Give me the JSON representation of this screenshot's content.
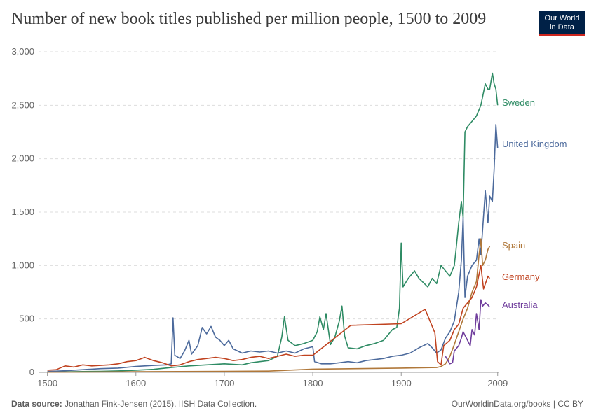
{
  "header": {
    "title": "Number of new book titles published per million people, 1500 to 2009",
    "logo_line1": "Our World",
    "logo_line2": "in Data"
  },
  "footer": {
    "source_label": "Data source:",
    "source_text": "Jonathan Fink-Jensen (2015). IISH Data Collection.",
    "credit": "OurWorldinData.org/books | CC BY"
  },
  "chart_data": {
    "type": "line",
    "title": "Number of new book titles published per million people, 1500 to 2009",
    "xlabel": "",
    "ylabel": "",
    "xlim": [
      1490,
      2010
    ],
    "ylim": [
      0,
      3000
    ],
    "x_ticks": [
      1500,
      1600,
      1700,
      1800,
      1900,
      2009
    ],
    "x_tick_labels": [
      "1500",
      "1600",
      "1700",
      "1800",
      "1900",
      "2009"
    ],
    "y_ticks": [
      0,
      500,
      1000,
      1500,
      2000,
      2500,
      3000
    ],
    "y_tick_labels": [
      "0",
      "500",
      "1,000",
      "1,500",
      "2,000",
      "2,500",
      "3,000"
    ],
    "grid": "horizontal dashed",
    "legend": "inline labels at right end of lines",
    "series": [
      {
        "name": "Sweden",
        "color": "#2e8b64",
        "points": [
          [
            1500,
            3
          ],
          [
            1520,
            5
          ],
          [
            1540,
            8
          ],
          [
            1560,
            10
          ],
          [
            1580,
            14
          ],
          [
            1600,
            20
          ],
          [
            1620,
            28
          ],
          [
            1640,
            45
          ],
          [
            1660,
            60
          ],
          [
            1680,
            70
          ],
          [
            1700,
            80
          ],
          [
            1720,
            70
          ],
          [
            1730,
            90
          ],
          [
            1740,
            100
          ],
          [
            1750,
            110
          ],
          [
            1760,
            150
          ],
          [
            1765,
            330
          ],
          [
            1768,
            520
          ],
          [
            1772,
            300
          ],
          [
            1780,
            250
          ],
          [
            1790,
            270
          ],
          [
            1800,
            300
          ],
          [
            1805,
            380
          ],
          [
            1808,
            520
          ],
          [
            1812,
            400
          ],
          [
            1815,
            550
          ],
          [
            1820,
            260
          ],
          [
            1825,
            330
          ],
          [
            1830,
            480
          ],
          [
            1833,
            620
          ],
          [
            1836,
            340
          ],
          [
            1840,
            230
          ],
          [
            1850,
            220
          ],
          [
            1860,
            250
          ],
          [
            1870,
            270
          ],
          [
            1880,
            300
          ],
          [
            1890,
            400
          ],
          [
            1895,
            420
          ],
          [
            1898,
            600
          ],
          [
            1900,
            1210
          ],
          [
            1902,
            800
          ],
          [
            1908,
            880
          ],
          [
            1915,
            950
          ],
          [
            1920,
            880
          ],
          [
            1925,
            840
          ],
          [
            1930,
            800
          ],
          [
            1935,
            880
          ],
          [
            1940,
            830
          ],
          [
            1945,
            1000
          ],
          [
            1950,
            950
          ],
          [
            1955,
            900
          ],
          [
            1960,
            1000
          ],
          [
            1962,
            1150
          ],
          [
            1965,
            1400
          ],
          [
            1968,
            1600
          ],
          [
            1970,
            1450
          ],
          [
            1972,
            2250
          ],
          [
            1975,
            2300
          ],
          [
            1980,
            2350
          ],
          [
            1985,
            2400
          ],
          [
            1990,
            2500
          ],
          [
            1995,
            2700
          ],
          [
            1998,
            2650
          ],
          [
            2000,
            2650
          ],
          [
            2003,
            2800
          ],
          [
            2005,
            2700
          ],
          [
            2007,
            2650
          ],
          [
            2009,
            2500
          ]
        ]
      },
      {
        "name": "United Kingdom",
        "color": "#4c6a9c",
        "points": [
          [
            1500,
            8
          ],
          [
            1520,
            15
          ],
          [
            1540,
            25
          ],
          [
            1560,
            35
          ],
          [
            1580,
            40
          ],
          [
            1600,
            55
          ],
          [
            1620,
            65
          ],
          [
            1635,
            70
          ],
          [
            1640,
            80
          ],
          [
            1642,
            510
          ],
          [
            1644,
            160
          ],
          [
            1650,
            130
          ],
          [
            1655,
            200
          ],
          [
            1660,
            300
          ],
          [
            1663,
            170
          ],
          [
            1670,
            250
          ],
          [
            1675,
            420
          ],
          [
            1680,
            360
          ],
          [
            1685,
            430
          ],
          [
            1690,
            330
          ],
          [
            1695,
            300
          ],
          [
            1700,
            250
          ],
          [
            1705,
            300
          ],
          [
            1710,
            220
          ],
          [
            1720,
            180
          ],
          [
            1730,
            200
          ],
          [
            1740,
            190
          ],
          [
            1750,
            200
          ],
          [
            1760,
            180
          ],
          [
            1770,
            200
          ],
          [
            1780,
            180
          ],
          [
            1790,
            220
          ],
          [
            1800,
            240
          ],
          [
            1802,
            100
          ],
          [
            1810,
            80
          ],
          [
            1820,
            80
          ],
          [
            1830,
            90
          ],
          [
            1840,
            100
          ],
          [
            1850,
            90
          ],
          [
            1860,
            110
          ],
          [
            1870,
            120
          ],
          [
            1880,
            130
          ],
          [
            1890,
            150
          ],
          [
            1900,
            160
          ],
          [
            1910,
            180
          ],
          [
            1920,
            230
          ],
          [
            1930,
            270
          ],
          [
            1935,
            230
          ],
          [
            1940,
            180
          ],
          [
            1945,
            210
          ],
          [
            1950,
            320
          ],
          [
            1955,
            380
          ],
          [
            1960,
            480
          ],
          [
            1965,
            750
          ],
          [
            1968,
            1050
          ],
          [
            1970,
            1450
          ],
          [
            1972,
            700
          ],
          [
            1975,
            900
          ],
          [
            1980,
            1000
          ],
          [
            1985,
            1050
          ],
          [
            1988,
            1250
          ],
          [
            1990,
            1100
          ],
          [
            1995,
            1700
          ],
          [
            1998,
            1400
          ],
          [
            2000,
            1650
          ],
          [
            2003,
            1600
          ],
          [
            2005,
            1900
          ],
          [
            2007,
            2320
          ],
          [
            2009,
            2100
          ]
        ]
      },
      {
        "name": "Spain",
        "color": "#b0783a",
        "points": [
          [
            1500,
            2
          ],
          [
            1550,
            4
          ],
          [
            1600,
            6
          ],
          [
            1650,
            8
          ],
          [
            1700,
            10
          ],
          [
            1750,
            12
          ],
          [
            1800,
            30
          ],
          [
            1850,
            35
          ],
          [
            1900,
            40
          ],
          [
            1940,
            45
          ],
          [
            1945,
            55
          ],
          [
            1950,
            80
          ],
          [
            1955,
            150
          ],
          [
            1960,
            260
          ],
          [
            1965,
            380
          ],
          [
            1970,
            500
          ],
          [
            1975,
            600
          ],
          [
            1980,
            750
          ],
          [
            1985,
            850
          ],
          [
            1988,
            1100
          ],
          [
            1990,
            1250
          ],
          [
            1992,
            1000
          ],
          [
            1995,
            1050
          ],
          [
            1998,
            1150
          ],
          [
            2000,
            1180
          ]
        ]
      },
      {
        "name": "Germany",
        "color": "#c0421f",
        "points": [
          [
            1500,
            20
          ],
          [
            1510,
            25
          ],
          [
            1520,
            60
          ],
          [
            1530,
            50
          ],
          [
            1540,
            70
          ],
          [
            1550,
            60
          ],
          [
            1560,
            65
          ],
          [
            1570,
            70
          ],
          [
            1580,
            80
          ],
          [
            1590,
            100
          ],
          [
            1600,
            110
          ],
          [
            1610,
            140
          ],
          [
            1620,
            110
          ],
          [
            1630,
            90
          ],
          [
            1640,
            60
          ],
          [
            1650,
            70
          ],
          [
            1660,
            100
          ],
          [
            1670,
            120
          ],
          [
            1680,
            130
          ],
          [
            1690,
            140
          ],
          [
            1700,
            130
          ],
          [
            1710,
            110
          ],
          [
            1720,
            120
          ],
          [
            1730,
            140
          ],
          [
            1740,
            150
          ],
          [
            1750,
            130
          ],
          [
            1760,
            150
          ],
          [
            1770,
            170
          ],
          [
            1780,
            150
          ],
          [
            1790,
            160
          ],
          [
            1800,
            160
          ],
          [
            1843,
            440
          ],
          [
            1900,
            455
          ],
          [
            1927,
            590
          ],
          [
            1938,
            370
          ],
          [
            1941,
            100
          ],
          [
            1945,
            70
          ],
          [
            1948,
            250
          ],
          [
            1955,
            300
          ],
          [
            1960,
            400
          ],
          [
            1965,
            450
          ],
          [
            1970,
            600
          ],
          [
            1975,
            650
          ],
          [
            1980,
            700
          ],
          [
            1985,
            800
          ],
          [
            1990,
            1000
          ],
          [
            1993,
            780
          ],
          [
            1996,
            850
          ],
          [
            1998,
            900
          ],
          [
            2000,
            880
          ]
        ]
      },
      {
        "name": "Australia",
        "color": "#6f3d9c",
        "points": [
          [
            1950,
            150
          ],
          [
            1955,
            80
          ],
          [
            1958,
            90
          ],
          [
            1960,
            200
          ],
          [
            1965,
            250
          ],
          [
            1968,
            320
          ],
          [
            1970,
            380
          ],
          [
            1975,
            300
          ],
          [
            1978,
            250
          ],
          [
            1980,
            400
          ],
          [
            1983,
            350
          ],
          [
            1985,
            550
          ],
          [
            1988,
            400
          ],
          [
            1990,
            680
          ],
          [
            1992,
            620
          ],
          [
            1995,
            650
          ],
          [
            1998,
            630
          ],
          [
            2000,
            610
          ]
        ]
      }
    ]
  }
}
